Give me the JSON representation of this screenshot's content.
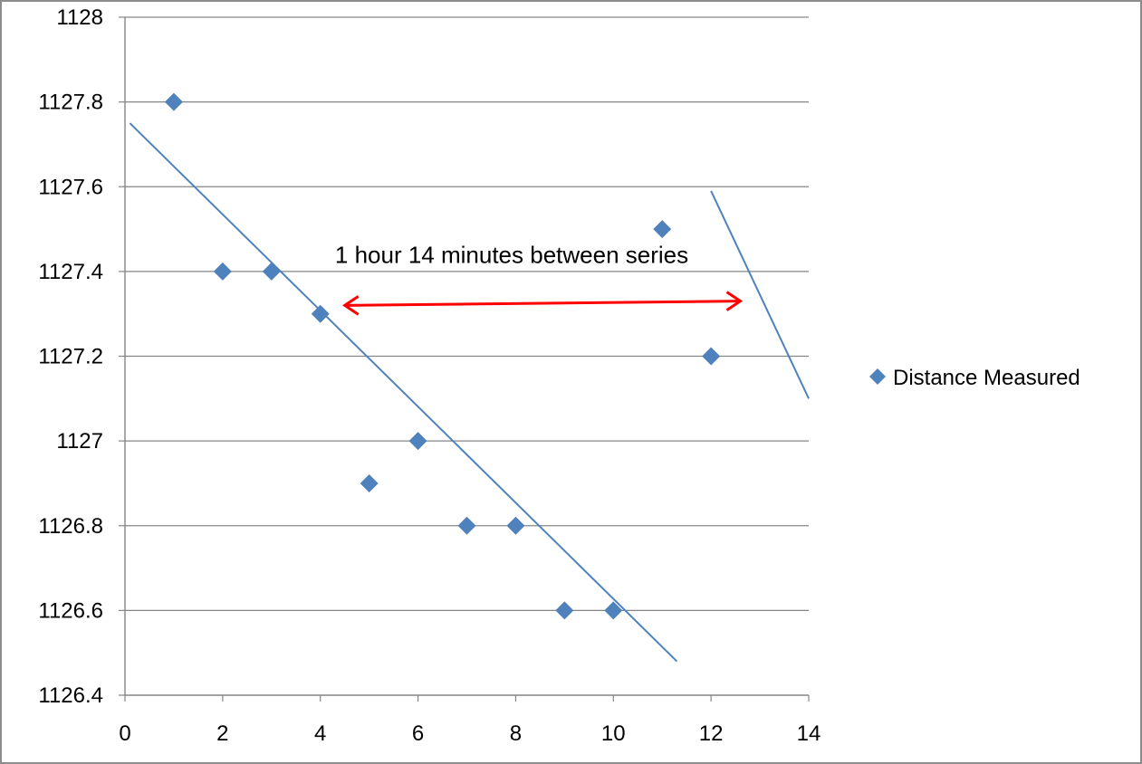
{
  "chart_data": {
    "type": "scatter",
    "series": [
      {
        "name": "Distance Measured",
        "color": "#4f81bd",
        "marker": "diamond",
        "points": [
          {
            "x": 1,
            "y": 1127.8
          },
          {
            "x": 2,
            "y": 1127.4
          },
          {
            "x": 3,
            "y": 1127.4
          },
          {
            "x": 4,
            "y": 1127.3
          },
          {
            "x": 5,
            "y": 1126.9
          },
          {
            "x": 6,
            "y": 1127.0
          },
          {
            "x": 7,
            "y": 1126.8
          },
          {
            "x": 8,
            "y": 1126.8
          },
          {
            "x": 9,
            "y": 1126.6
          },
          {
            "x": 10,
            "y": 1126.6
          },
          {
            "x": 11,
            "y": 1127.5
          },
          {
            "x": 12,
            "y": 1127.2
          }
        ]
      }
    ],
    "trendlines": [
      {
        "color": "#4f81bd",
        "from": {
          "x": 0.1,
          "y": 1127.75
        },
        "to": {
          "x": 11.3,
          "y": 1126.48
        }
      },
      {
        "color": "#4f81bd",
        "from": {
          "x": 12.0,
          "y": 1127.59
        },
        "to": {
          "x": 14.0,
          "y": 1127.1
        }
      }
    ],
    "annotation": {
      "text": "1 hour 14 minutes between series",
      "at": {
        "x": 4.3,
        "y": 1127.42
      },
      "arrow": {
        "color": "#ff0000",
        "from": {
          "x": 4.5,
          "y": 1127.32
        },
        "to": {
          "x": 12.6,
          "y": 1127.33
        }
      }
    },
    "xlim": [
      0,
      14
    ],
    "ylim": [
      1126.4,
      1128
    ],
    "x_ticks": [
      0,
      2,
      4,
      6,
      8,
      10,
      12,
      14
    ],
    "y_ticks": [
      "1126.4",
      "1126.6",
      "1126.8",
      "1127",
      "1127.2",
      "1127.4",
      "1127.6",
      "1127.8",
      "1128"
    ],
    "grid": "horizontal",
    "legend_position": "right",
    "title": "",
    "xlabel": "",
    "ylabel": ""
  }
}
